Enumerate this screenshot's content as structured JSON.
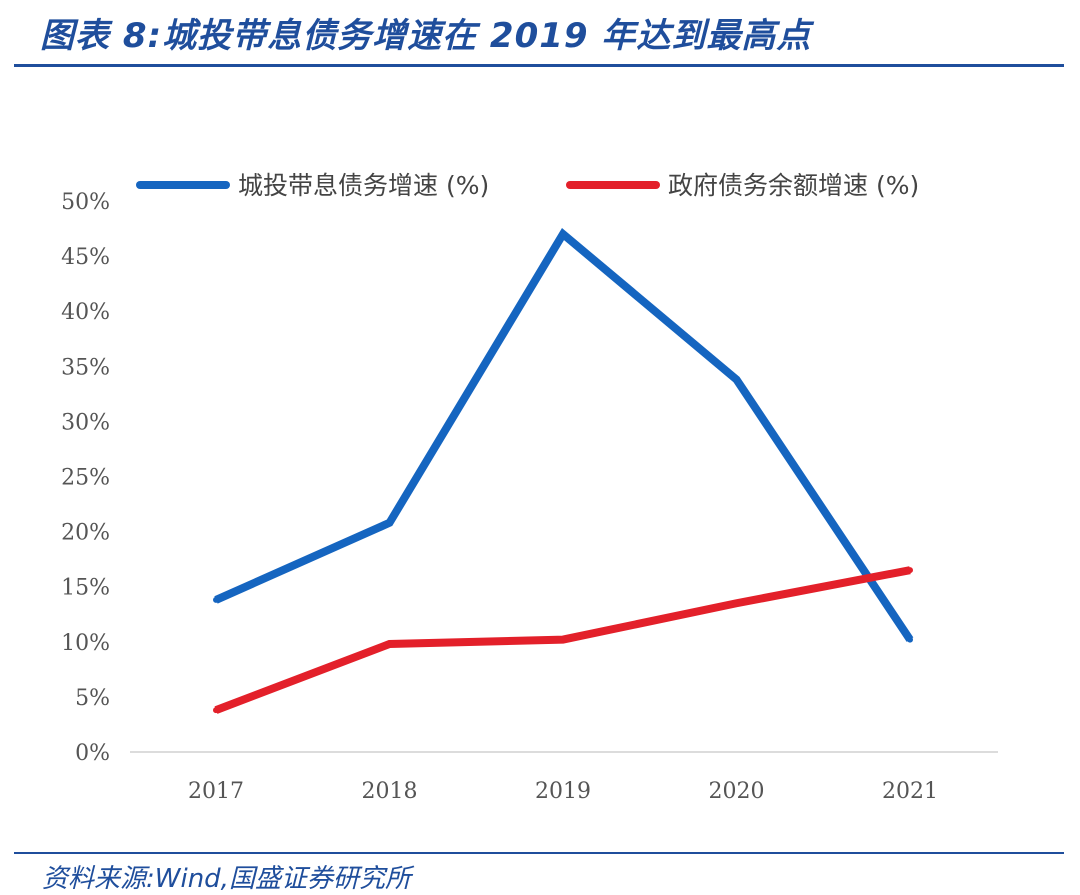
{
  "title": "图表 8:城投带息债务增速在 2019 年达到最高点",
  "source": "资料来源:Wind,国盛证券研究所",
  "chart_data": {
    "type": "line",
    "categories": [
      "2017",
      "2018",
      "2019",
      "2020",
      "2021"
    ],
    "series": [
      {
        "name": "城投带息债务增速 (%)",
        "color": "#1565c0",
        "values": [
          13.8,
          20.8,
          47.0,
          33.8,
          10.2
        ]
      },
      {
        "name": "政府债务余额增速 (%)",
        "color": "#e3202a",
        "values": [
          3.8,
          9.8,
          10.2,
          13.5,
          16.5
        ]
      }
    ],
    "ylim": [
      0,
      50
    ],
    "yticks": [
      "0%",
      "5%",
      "10%",
      "15%",
      "20%",
      "25%",
      "30%",
      "35%",
      "40%",
      "45%",
      "50%"
    ],
    "grid": false,
    "legend_position": "top"
  }
}
